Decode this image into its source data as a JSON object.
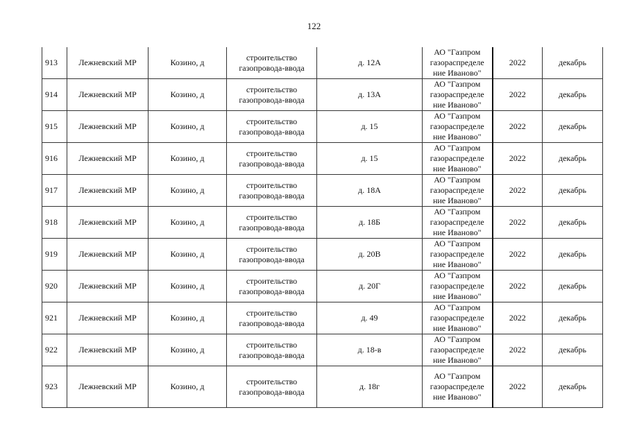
{
  "page_number": "122",
  "rows": [
    {
      "num": "913",
      "district": "Лежневский МР",
      "settlement": "Козино, д",
      "work": "строительство\nгазопровода-ввода",
      "address": "д. 12А",
      "operator": "АО \"Газпром\nгазораспределе\nние Иваново\"",
      "year": "2022",
      "month": "декабрь"
    },
    {
      "num": "914",
      "district": "Лежневский МР",
      "settlement": "Козино, д",
      "work": "строительство\nгазопровода-ввода",
      "address": "д. 13А",
      "operator": "АО \"Газпром\nгазораспределе\nние Иваново\"",
      "year": "2022",
      "month": "декабрь"
    },
    {
      "num": "915",
      "district": "Лежневский МР",
      "settlement": "Козино, д",
      "work": "строительство\nгазопровода-ввода",
      "address": "д. 15",
      "operator": "АО \"Газпром\nгазораспределе\nние Иваново\"",
      "year": "2022",
      "month": "декабрь"
    },
    {
      "num": "916",
      "district": "Лежневский МР",
      "settlement": "Козино, д",
      "work": "строительство\nгазопровода-ввода",
      "address": "д. 15",
      "operator": "АО \"Газпром\nгазораспределе\nние Иваново\"",
      "year": "2022",
      "month": "декабрь"
    },
    {
      "num": "917",
      "district": "Лежневский МР",
      "settlement": "Козино, д",
      "work": "строительство\nгазопровода-ввода",
      "address": "д. 18А",
      "operator": "АО \"Газпром\nгазораспределе\nние Иваново\"",
      "year": "2022",
      "month": "декабрь"
    },
    {
      "num": "918",
      "district": "Лежневский МР",
      "settlement": "Козино, д",
      "work": "строительство\nгазопровода-ввода",
      "address": "д. 18Б",
      "operator": "АО \"Газпром\nгазораспределе\nние Иваново\"",
      "year": "2022",
      "month": "декабрь"
    },
    {
      "num": "919",
      "district": "Лежневский МР",
      "settlement": "Козино, д",
      "work": "строительство\nгазопровода-ввода",
      "address": "д. 20В",
      "operator": "АО \"Газпром\nгазораспределе\nние Иваново\"",
      "year": "2022",
      "month": "декабрь"
    },
    {
      "num": "920",
      "district": "Лежневский МР",
      "settlement": "Козино, д",
      "work": "строительство\nгазопровода-ввода",
      "address": "д. 20Г",
      "operator": "АО \"Газпром\nгазораспределе\nние Иваново\"",
      "year": "2022",
      "month": "декабрь"
    },
    {
      "num": "921",
      "district": "Лежневский МР",
      "settlement": "Козино, д",
      "work": "строительство\nгазопровода-ввода",
      "address": "д. 49",
      "operator": "АО \"Газпром\nгазораспределе\nние Иваново\"",
      "year": "2022",
      "month": "декабрь"
    },
    {
      "num": "922",
      "district": "Лежневский МР",
      "settlement": "Козино, д",
      "work": "строительство\nгазопровода-ввода",
      "address": "д. 18-в",
      "operator": "АО \"Газпром\nгазораспределе\nние Иваново\"",
      "year": "2022",
      "month": "декабрь"
    },
    {
      "num": "923",
      "district": "Лежневский МР",
      "settlement": "Козино, д",
      "work": "строительство\nгазопровода-ввода",
      "address": "д. 18г",
      "operator": "АО \"Газпром\nгазораспределе\nние Иваново\"",
      "year": "2022",
      "month": "декабрь"
    }
  ]
}
